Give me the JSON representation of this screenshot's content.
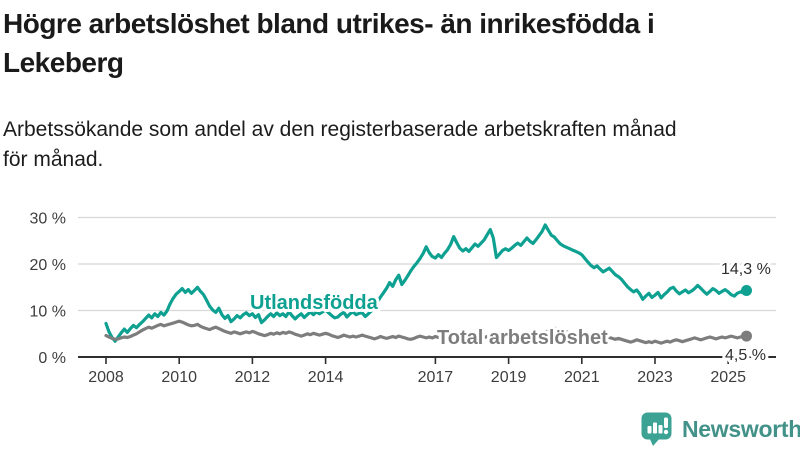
{
  "header": {
    "title_lines": [
      "Högre arbetslöshet bland utrikes- än inrikesfödda i",
      "Lekeberg"
    ],
    "subtitle_lines": [
      "Arbetssökande som andel av den registerbaserade arbetskraften månad",
      "för månad."
    ]
  },
  "chart_data": {
    "type": "line",
    "title": "Högre arbetslöshet bland utrikes- än inrikesfödda i Lekeberg",
    "subtitle": "Arbetssökande som andel av den registerbaserade arbetskraften månad för månad.",
    "unit": "%",
    "grid": true,
    "legend_position": "inline-labels",
    "x_start": 2008.0,
    "x_step": 0.0833333,
    "xlim": [
      2008.0,
      2025.58
    ],
    "ylim": [
      0,
      30
    ],
    "yticks": [
      {
        "value": 0,
        "label": "0 %"
      },
      {
        "value": 10,
        "label": "10 %"
      },
      {
        "value": 20,
        "label": "20 %"
      },
      {
        "value": 30,
        "label": "30 %"
      }
    ],
    "xticks": [
      {
        "value": 2008,
        "label": "2008"
      },
      {
        "value": 2010,
        "label": "2010"
      },
      {
        "value": 2012,
        "label": "2012"
      },
      {
        "value": 2014,
        "label": "2014"
      },
      {
        "value": 2017,
        "label": "2017"
      },
      {
        "value": 2019,
        "label": "2019"
      },
      {
        "value": 2021,
        "label": "2021"
      },
      {
        "value": 2023,
        "label": "2023"
      },
      {
        "value": 2025,
        "label": "2025"
      }
    ],
    "series": [
      {
        "id": "utlandsfodda",
        "name": "Utlandsfödda",
        "color": "#0ea192",
        "end_value": 14.3,
        "end_label": "14,3 %",
        "values": [
          7.2,
          5.4,
          4.2,
          3.4,
          4.3,
          5.2,
          6.0,
          5.3,
          6.1,
          6.8,
          6.3,
          7.0,
          7.6,
          8.3,
          9.0,
          8.4,
          9.3,
          8.7,
          9.6,
          9.0,
          9.9,
          11.4,
          12.6,
          13.5,
          14.1,
          14.7,
          13.9,
          14.5,
          13.7,
          14.3,
          15.0,
          14.1,
          13.4,
          12.2,
          10.9,
          10.1,
          9.6,
          10.5,
          9.1,
          8.3,
          8.9,
          7.6,
          8.2,
          8.9,
          8.4,
          9.1,
          9.5,
          8.9,
          9.3,
          8.5,
          9.1,
          7.4,
          8.0,
          8.7,
          9.3,
          8.7,
          9.5,
          8.9,
          9.3,
          8.7,
          9.7,
          8.9,
          8.2,
          8.8,
          9.3,
          8.5,
          9.1,
          9.7,
          9.1,
          9.7,
          9.3,
          9.7,
          10.1,
          9.5,
          8.9,
          8.4,
          8.6,
          9.2,
          9.6,
          8.6,
          9.3,
          9.7,
          9.1,
          9.4,
          9.5,
          8.7,
          9.3,
          9.9,
          10.8,
          11.8,
          12.9,
          13.8,
          14.8,
          16.0,
          15.2,
          16.6,
          17.6,
          15.6,
          16.5,
          17.5,
          18.6,
          19.5,
          20.3,
          21.2,
          22.3,
          23.7,
          22.4,
          21.6,
          21.3,
          22.0,
          21.4,
          22.3,
          23.1,
          24.2,
          25.9,
          24.6,
          23.4,
          22.8,
          23.3,
          22.7,
          23.5,
          24.3,
          23.8,
          24.5,
          25.2,
          26.3,
          27.4,
          25.6,
          21.4,
          22.1,
          22.9,
          23.3,
          22.9,
          23.4,
          24.0,
          24.5,
          24.0,
          24.8,
          25.6,
          24.9,
          24.4,
          25.2,
          26.1,
          27.0,
          28.4,
          27.3,
          26.2,
          25.8,
          25.0,
          24.3,
          23.9,
          23.6,
          23.3,
          23.0,
          22.7,
          22.4,
          22.0,
          21.2,
          20.4,
          19.7,
          19.2,
          19.6,
          18.9,
          18.3,
          18.7,
          19.1,
          18.4,
          17.7,
          17.3,
          16.7,
          15.9,
          15.1,
          14.5,
          14.0,
          14.4,
          13.6,
          12.4,
          13.1,
          13.7,
          12.8,
          13.3,
          13.9,
          12.7,
          13.4,
          14.0,
          14.7,
          15.0,
          14.2,
          13.6,
          14.0,
          14.4,
          13.8,
          14.2,
          14.7,
          15.4,
          14.8,
          14.1,
          13.5,
          14.1,
          14.7,
          14.3,
          13.7,
          14.1,
          14.5,
          14.0,
          13.4,
          13.1,
          13.7,
          14.0,
          13.8,
          14.3
        ]
      },
      {
        "id": "total",
        "name": "Total arbetslöshet",
        "color": "#7d7d7d",
        "end_value": 4.5,
        "end_label": "4,5 %",
        "values": [
          4.6,
          4.3,
          4.0,
          3.8,
          3.9,
          4.1,
          4.3,
          4.2,
          4.4,
          4.7,
          5.0,
          5.4,
          5.8,
          6.1,
          6.4,
          6.2,
          6.5,
          6.8,
          7.0,
          6.7,
          6.9,
          7.1,
          7.3,
          7.5,
          7.7,
          7.5,
          7.2,
          6.9,
          6.7,
          6.8,
          7.0,
          6.6,
          6.3,
          6.1,
          5.9,
          6.2,
          6.4,
          6.1,
          5.8,
          5.5,
          5.3,
          5.1,
          5.4,
          5.2,
          5.0,
          5.2,
          5.4,
          5.2,
          5.5,
          5.3,
          5.0,
          4.8,
          4.6,
          4.8,
          5.1,
          4.9,
          5.2,
          5.0,
          5.3,
          5.1,
          5.4,
          5.2,
          4.9,
          4.7,
          4.5,
          4.7,
          5.0,
          4.8,
          5.1,
          4.9,
          4.7,
          4.9,
          5.1,
          4.9,
          4.6,
          4.4,
          4.2,
          4.4,
          4.7,
          4.5,
          4.3,
          4.5,
          4.3,
          4.5,
          4.7,
          4.5,
          4.3,
          4.1,
          3.9,
          4.1,
          4.4,
          4.2,
          4.0,
          4.2,
          4.4,
          4.2,
          4.5,
          4.3,
          4.1,
          3.9,
          3.8,
          4.0,
          4.3,
          4.5,
          4.3,
          4.1,
          4.3,
          4.1,
          4.4,
          4.2,
          4.0,
          4.2,
          4.4,
          4.6,
          4.9,
          4.7,
          4.5,
          4.3,
          4.5,
          4.3,
          4.6,
          4.8,
          4.6,
          4.4,
          4.2,
          4.4,
          4.7,
          4.5,
          4.2,
          4.0,
          4.2,
          4.4,
          4.6,
          4.4,
          4.2,
          4.4,
          4.6,
          4.8,
          5.0,
          4.8,
          4.6,
          4.8,
          5.0,
          5.2,
          5.4,
          5.6,
          5.9,
          6.2,
          6.0,
          5.8,
          5.6,
          5.4,
          5.2,
          5.0,
          4.8,
          4.6,
          4.8,
          4.6,
          4.4,
          4.2,
          4.0,
          4.2,
          4.4,
          4.2,
          4.0,
          4.2,
          4.0,
          3.8,
          4.0,
          3.8,
          3.6,
          3.4,
          3.2,
          3.4,
          3.7,
          3.5,
          3.3,
          3.1,
          3.3,
          3.1,
          3.4,
          3.2,
          3.0,
          3.2,
          3.4,
          3.2,
          3.5,
          3.7,
          3.5,
          3.3,
          3.5,
          3.7,
          3.9,
          4.1,
          3.9,
          3.7,
          3.9,
          4.1,
          4.3,
          4.1,
          3.9,
          4.1,
          4.3,
          4.1,
          4.3,
          4.5,
          4.3,
          4.1,
          4.3,
          4.4,
          4.5
        ]
      }
    ]
  },
  "colors": {
    "accent_teal": "#0ea192",
    "series_gray": "#7d7d7d",
    "grid_line": "#d8d8d8",
    "axis_line": "#2f2f2f",
    "axis_text": "#3d3d3d",
    "logo_icon": "#3ba294",
    "logo_text": "#42928a"
  },
  "footer": {
    "brand": "Newsworthy"
  }
}
